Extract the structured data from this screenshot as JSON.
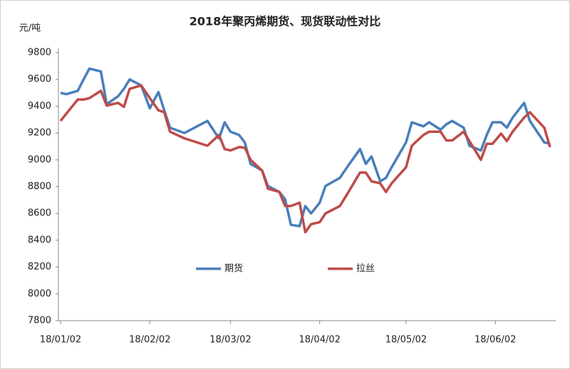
{
  "chart_data": {
    "type": "line",
    "title": "2018年聚丙烯期货、现货联动性对比",
    "y_label": "元/吨",
    "x": [
      "18/01/02",
      "18/01/04",
      "18/01/08",
      "18/01/10",
      "18/01/12",
      "18/01/16",
      "18/01/18",
      "18/01/22",
      "18/01/24",
      "18/01/26",
      "18/01/30",
      "18/02/02",
      "18/02/05",
      "18/02/07",
      "18/02/09",
      "18/02/14",
      "18/02/22",
      "18/02/26",
      "18/02/28",
      "18/03/02",
      "18/03/05",
      "18/03/07",
      "18/03/09",
      "18/03/13",
      "18/03/15",
      "18/03/19",
      "18/03/21",
      "18/03/23",
      "18/03/26",
      "18/03/28",
      "18/03/30",
      "18/04/02",
      "18/04/04",
      "18/04/09",
      "18/04/12",
      "18/04/16",
      "18/04/18",
      "18/04/20",
      "18/04/23",
      "18/04/25",
      "18/04/27",
      "18/05/02",
      "18/05/04",
      "18/05/08",
      "18/05/10",
      "18/05/14",
      "18/05/16",
      "18/05/18",
      "18/05/22",
      "18/05/24",
      "18/05/28",
      "18/05/30",
      "18/06/01",
      "18/06/04",
      "18/06/06",
      "18/06/08",
      "18/06/12",
      "18/06/14",
      "18/06/19",
      "18/06/21"
    ],
    "series": [
      {
        "name": "期货",
        "color": "#4a7ebb",
        "values": [
          9500,
          9490,
          9515,
          9600,
          9680,
          9660,
          9415,
          9475,
          9530,
          9600,
          9555,
          9385,
          9505,
          9370,
          9240,
          9200,
          9290,
          9160,
          9280,
          9210,
          9185,
          9130,
          8970,
          8920,
          8805,
          8760,
          8705,
          8515,
          8505,
          8655,
          8600,
          8680,
          8805,
          8865,
          8960,
          9080,
          8970,
          9025,
          8840,
          8865,
          8945,
          9130,
          9280,
          9250,
          9280,
          9225,
          9265,
          9290,
          9240,
          9105,
          9070,
          9185,
          9280,
          9280,
          9240,
          9315,
          9425,
          9290,
          9130,
          9120
        ]
      },
      {
        "name": "拉丝",
        "color": "#be4b48",
        "values": [
          9290,
          9345,
          9450,
          9450,
          9460,
          9515,
          9405,
          9425,
          9395,
          9530,
          9555,
          9460,
          9370,
          9355,
          9210,
          9160,
          9105,
          9185,
          9080,
          9070,
          9095,
          9090,
          9000,
          8920,
          8785,
          8760,
          8655,
          8655,
          8680,
          8460,
          8520,
          8535,
          8600,
          8655,
          8760,
          8905,
          8905,
          8840,
          8825,
          8760,
          8825,
          8945,
          9105,
          9185,
          9210,
          9210,
          9145,
          9145,
          9210,
          9140,
          9000,
          9120,
          9120,
          9195,
          9140,
          9210,
          9315,
          9355,
          9240,
          9095
        ]
      }
    ],
    "xlim": [
      "18/01/02",
      "18/06/21"
    ],
    "xticks": [
      "18/01/02",
      "18/02/02",
      "18/03/02",
      "18/04/02",
      "18/05/02",
      "18/06/02"
    ],
    "ylim": [
      7800,
      9800
    ],
    "yticks": [
      7800,
      8000,
      8200,
      8400,
      8600,
      8800,
      9000,
      9200,
      9400,
      9600,
      9800
    ],
    "grid": false
  }
}
